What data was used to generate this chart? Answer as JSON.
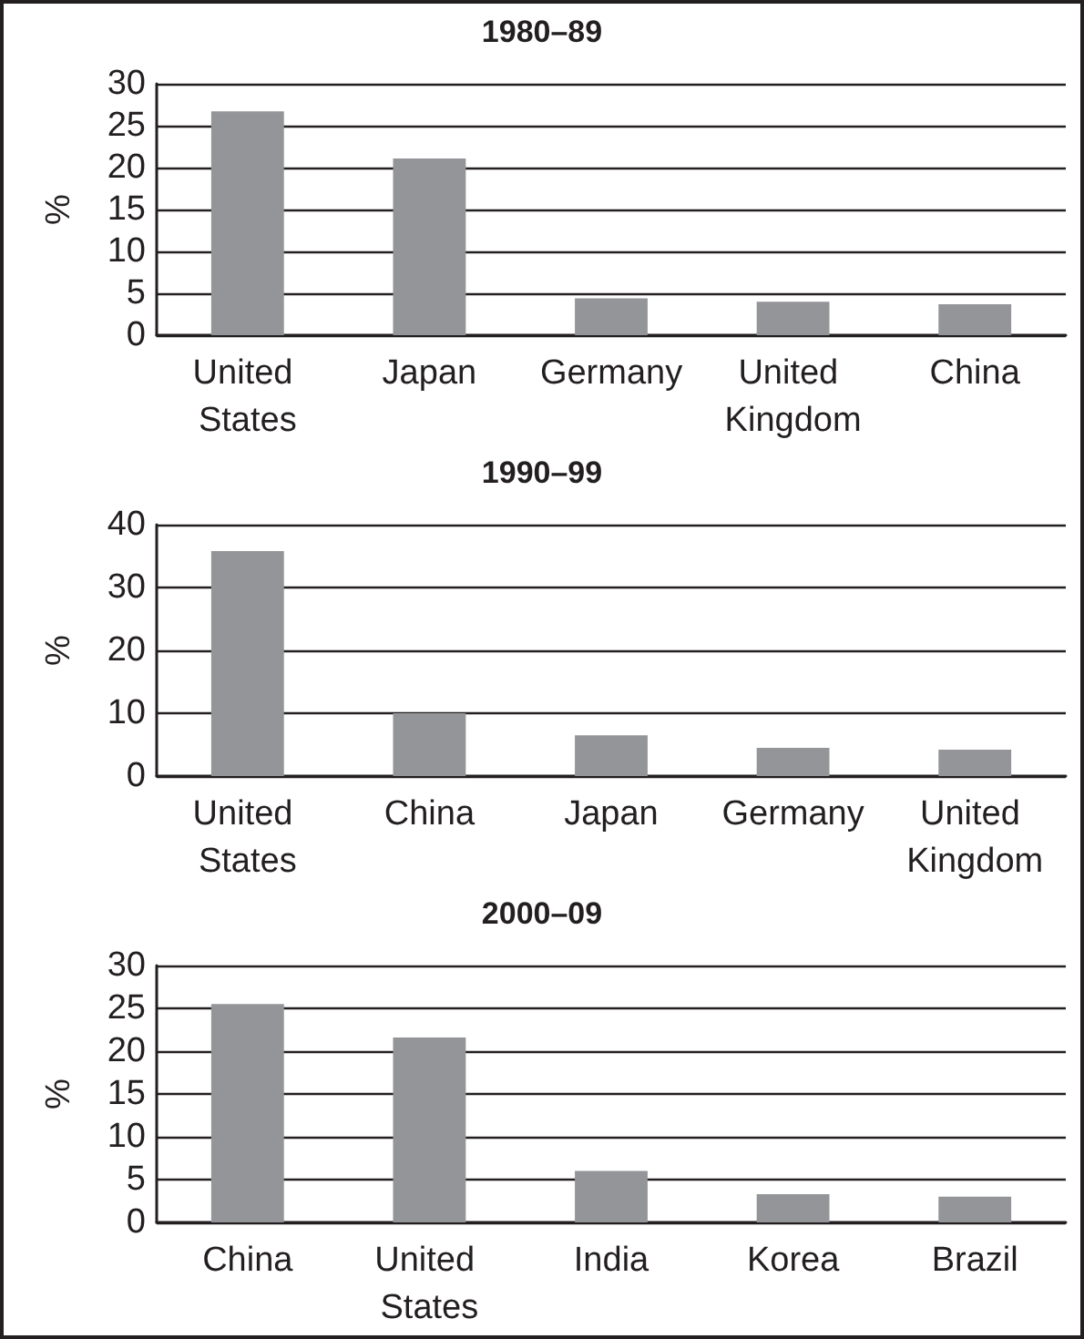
{
  "chart_data": [
    {
      "type": "bar",
      "title": "1980–89",
      "ylabel": "%",
      "categories": [
        "United States",
        "Japan",
        "Germany",
        "United Kingdom",
        "China"
      ],
      "values": [
        26.7,
        21.1,
        4.4,
        4.0,
        3.7
      ],
      "color": "#939598",
      "ylim": [
        0,
        30
      ],
      "yticks": [
        0,
        5,
        10,
        15,
        20,
        25,
        30
      ],
      "grid": "y"
    },
    {
      "type": "bar",
      "title": "1990–99",
      "ylabel": "%",
      "categories": [
        "United States",
        "China",
        "Japan",
        "Germany",
        "United Kingdom"
      ],
      "values": [
        35.8,
        10.0,
        6.5,
        4.5,
        4.2
      ],
      "color": "#939598",
      "ylim": [
        0,
        40
      ],
      "yticks": [
        0,
        10,
        20,
        30,
        40
      ],
      "grid": "y"
    },
    {
      "type": "bar",
      "title": "2000–09",
      "ylabel": "%",
      "categories": [
        "China",
        "United States",
        "India",
        "Korea",
        "Brazil"
      ],
      "values": [
        25.5,
        21.6,
        6.0,
        3.3,
        3.0
      ],
      "color": "#939598",
      "ylim": [
        0,
        30
      ],
      "yticks": [
        0,
        5,
        10,
        15,
        20,
        25,
        30
      ],
      "grid": "y"
    }
  ]
}
